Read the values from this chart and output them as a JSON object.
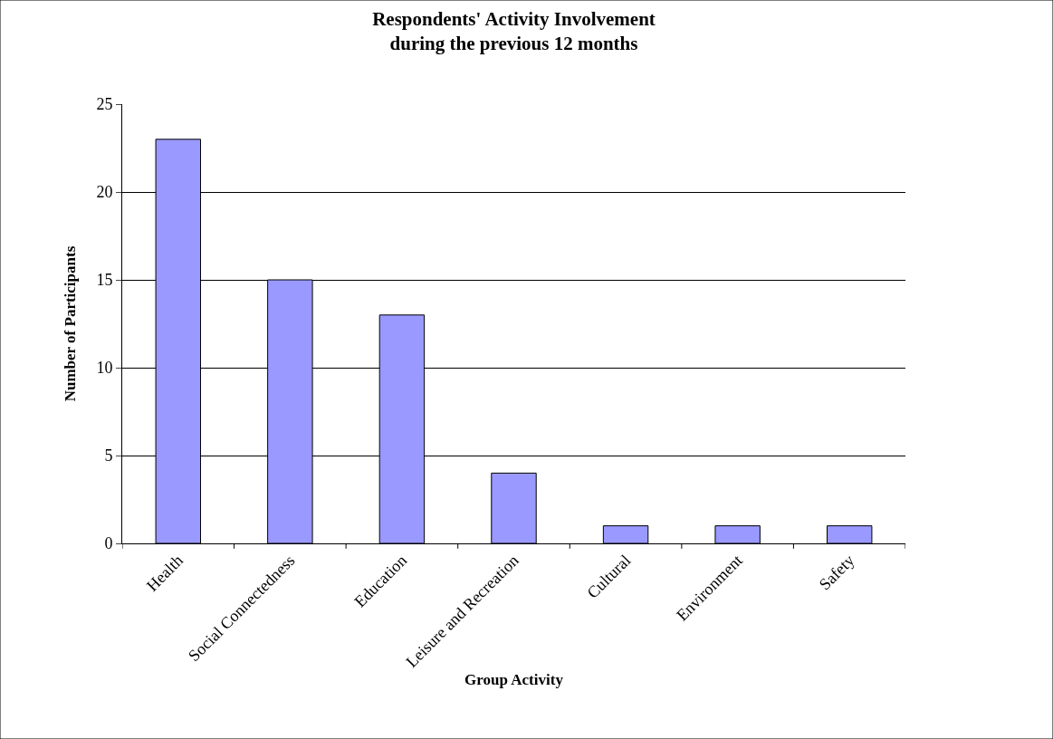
{
  "chart_data": {
    "type": "bar",
    "title": "Respondents' Activity Involvement\nduring the previous 12 months",
    "xlabel": "Group Activity",
    "ylabel": "Number of Participants",
    "categories": [
      "Health",
      "Social Connectedness",
      "Education",
      "Leisure and Recreation",
      "Cultural",
      "Environment",
      "Safety"
    ],
    "values": [
      23,
      15,
      13,
      4,
      1,
      1,
      1
    ],
    "color": "#9999ff",
    "ylim": [
      0,
      25
    ],
    "yticks": [
      0,
      5,
      10,
      15,
      20,
      25
    ],
    "grid": "y",
    "legend": false
  }
}
